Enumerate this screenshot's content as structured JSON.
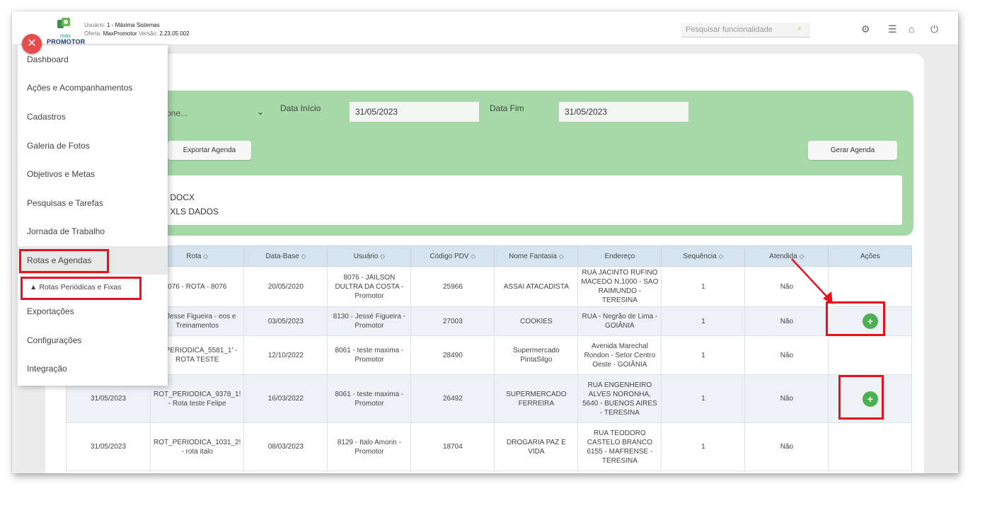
{
  "header": {
    "user_key": "Usuário:",
    "user_value": "1 - Máxima Sistemas",
    "offer_key": "Oferta:",
    "offer_value": "MaxPromotor",
    "version_key": "Versão:",
    "version_value": "2.23.05.002",
    "logo_small": "max",
    "logo_text": "PROMOTOR",
    "search_placeholder": "Pesquisar funcionalidade"
  },
  "menu": {
    "items": [
      {
        "label": "Dashboard"
      },
      {
        "label": "Ações e Acompanhamentos"
      },
      {
        "label": "Cadastros"
      },
      {
        "label": "Galeria de Fotos"
      },
      {
        "label": "Objetivos e Metas"
      },
      {
        "label": "Pesquisas e Tarefas"
      },
      {
        "label": "Jornada de Trabalho"
      },
      {
        "label": "Rotas e Agendas"
      },
      {
        "label": "Exportações"
      },
      {
        "label": "Configurações"
      },
      {
        "label": "Integração"
      }
    ],
    "submenu_label": "Rotas Periódicas e Fixas"
  },
  "filters": {
    "select_text": "one...",
    "data_inicio_label": "Data Início",
    "data_inicio_value": "31/05/2023",
    "data_fim_label": "Data Fim",
    "data_fim_value": "31/05/2023",
    "export_button": "Exportar Agenda",
    "generate_button": "Gerar Agenda",
    "radio_docx": ") DOCX",
    "radio_xls": ") XLS DADOS"
  },
  "table": {
    "headers": [
      "",
      "Rota",
      "Data-Base",
      "Usuário",
      "Código PDV",
      "Nome Fantasia",
      "Endereço",
      "Sequência",
      "Atendida",
      "Ações"
    ],
    "rows": [
      {
        "data": "",
        "rota": "076 - ROTA - 8076",
        "base": "20/05/2020",
        "usuario": "8076 - JAILSON DULTRA DA COSTA - Promotor",
        "pdv": "25966",
        "fantasia": "ASSAI ATACADISTA",
        "endereco": "RUA JACINTO RUFINO MACEDO N.1000 - SAO RAIMUNDO - TERESINA",
        "seq": "1",
        "atendida": "Não"
      },
      {
        "data": "",
        "rota": "ta Jesse Figueira - eos e Treinamentos",
        "base": "03/05/2023",
        "usuario": "8130 - Jessé Figueira - Promotor",
        "pdv": "27003",
        "fantasia": "COOKIES",
        "endereco": "RUA - Negrão de Lima - GOIÂNIA",
        "seq": "1",
        "atendida": "Não"
      },
      {
        "data": "",
        "rota": "T_PERIODICA_5581_1' - ROTA TESTE",
        "base": "12/10/2022",
        "usuario": "8061 - teste maxima - Promotor",
        "pdv": "28490",
        "fantasia": "Supermercado PintaSilgo",
        "endereco": "Avenida Marechal Rondon - Setor Centro Oeste - GOIÂNIA",
        "seq": "1",
        "atendida": "Não"
      },
      {
        "data": "31/05/2023",
        "rota": "ROT_PERIODICA_9378_1! - Rota teste Felipe",
        "base": "16/03/2022",
        "usuario": "8061 - teste maxima - Promotor",
        "pdv": "26492",
        "fantasia": "SUPERMERCADO FERREIRA",
        "endereco": "RUA ENGENHEIRO ALVES NORONHA, 5640 - BUENOS AIRES - TERESINA",
        "seq": "1",
        "atendida": "Não"
      },
      {
        "data": "31/05/2023",
        "rota": "ROT_PERIODICA_1031_2! - rota italo",
        "base": "08/03/2023",
        "usuario": "8129 - Italo Amorin - Promotor",
        "pdv": "18704",
        "fantasia": "DROGARIA PAZ E VIDA",
        "endereco": "RUA TEODORO CASTELO BRANCO 6155 - MAFRENSE - TERESINA",
        "seq": "1",
        "atendida": "Não"
      }
    ],
    "add_symbol": "+"
  }
}
